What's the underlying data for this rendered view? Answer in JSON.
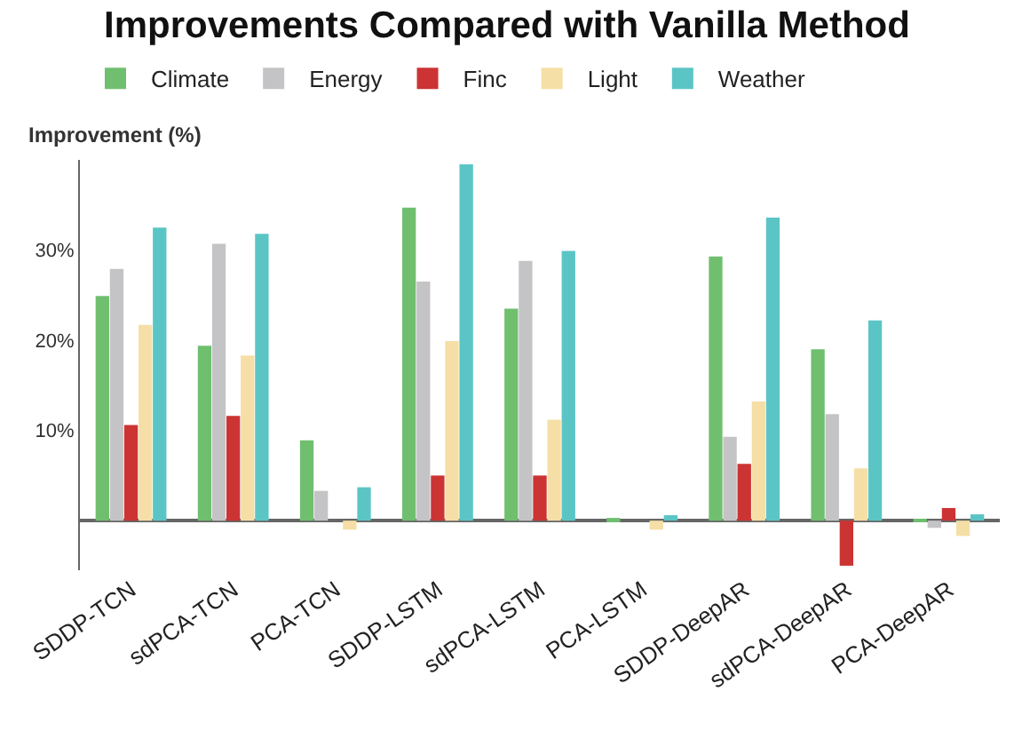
{
  "chart_data": {
    "type": "bar",
    "title": "Improvements Compared with Vanilla Method",
    "ylabel": "Improvement (%)",
    "categories": [
      "SDDP-TCN",
      "sdPCA-TCN",
      "PCA-TCN",
      "SDDP-LSTM",
      "sdPCA-LSTM",
      "PCA-LSTM",
      "SDDP-DeepAR",
      "sdPCA-DeepAR",
      "PCA-DeepAR"
    ],
    "series": [
      {
        "name": "Climate",
        "color": "#6fbf6f",
        "values": [
          24.9,
          19.4,
          8.9,
          34.7,
          23.5,
          0.3,
          29.3,
          19.0,
          0.2
        ]
      },
      {
        "name": "Energy",
        "color": "#c4c4c6",
        "values": [
          27.9,
          30.7,
          3.3,
          26.5,
          28.8,
          null,
          9.3,
          11.8,
          -0.8
        ]
      },
      {
        "name": "Finc",
        "color": "#cc3333",
        "values": [
          10.6,
          11.6,
          null,
          5.0,
          5.0,
          null,
          6.3,
          -5.0,
          1.4
        ]
      },
      {
        "name": "Light",
        "color": "#f5dfa6",
        "values": [
          21.7,
          18.3,
          -1.0,
          19.9,
          11.2,
          -1.0,
          13.2,
          5.8,
          -1.7
        ]
      },
      {
        "name": "Weather",
        "color": "#5bc5c6",
        "values": [
          32.5,
          31.8,
          3.7,
          39.5,
          29.9,
          0.6,
          33.6,
          22.2,
          0.7
        ]
      }
    ],
    "ylim": [
      -5.5,
      40
    ],
    "yticks": [
      {
        "value": 10,
        "label": "10%"
      },
      {
        "value": 20,
        "label": "20%"
      },
      {
        "value": 30,
        "label": "30%"
      }
    ],
    "legend": "top left"
  }
}
